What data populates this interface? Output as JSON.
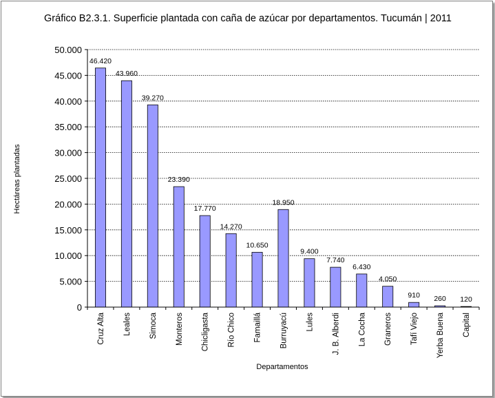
{
  "chart_data": {
    "type": "bar",
    "title": "Gráfico B2.3.1. Superficie plantada  con caña de azúcar por departamentos. Tucumán | 2011",
    "xlabel": "Departamentos",
    "ylabel": "Hectáreas plantadas",
    "ylim": [
      0,
      50000
    ],
    "ytick_step": 5000,
    "yticks": [
      "0",
      "5.000",
      "10.000",
      "15.000",
      "20.000",
      "25.000",
      "30.000",
      "35.000",
      "40.000",
      "45.000",
      "50.000"
    ],
    "grid": "horizontal-dotted",
    "legend": "none",
    "bar_color": "#9999ff",
    "categories": [
      "Cruz Alta",
      "Leales",
      "Simoca",
      "Monteros",
      "Chicligasta",
      "Río Chico",
      "Famaillá",
      "Burruyacú",
      "Lules",
      "J. B. Alberdi",
      "La Cocha",
      "Graneros",
      "Tafí Viejo",
      "Yerba Buena",
      "Capital"
    ],
    "values": [
      46420,
      43960,
      39270,
      23390,
      17770,
      14270,
      10650,
      18950,
      9400,
      7740,
      6430,
      4050,
      910,
      260,
      120
    ],
    "value_labels": [
      "46.420",
      "43.960",
      "39.270",
      "23.390",
      "17.770",
      "14.270",
      "10.650",
      "18.950",
      "9.400",
      "7.740",
      "6.430",
      "4.050",
      "910",
      "260",
      "120"
    ]
  }
}
